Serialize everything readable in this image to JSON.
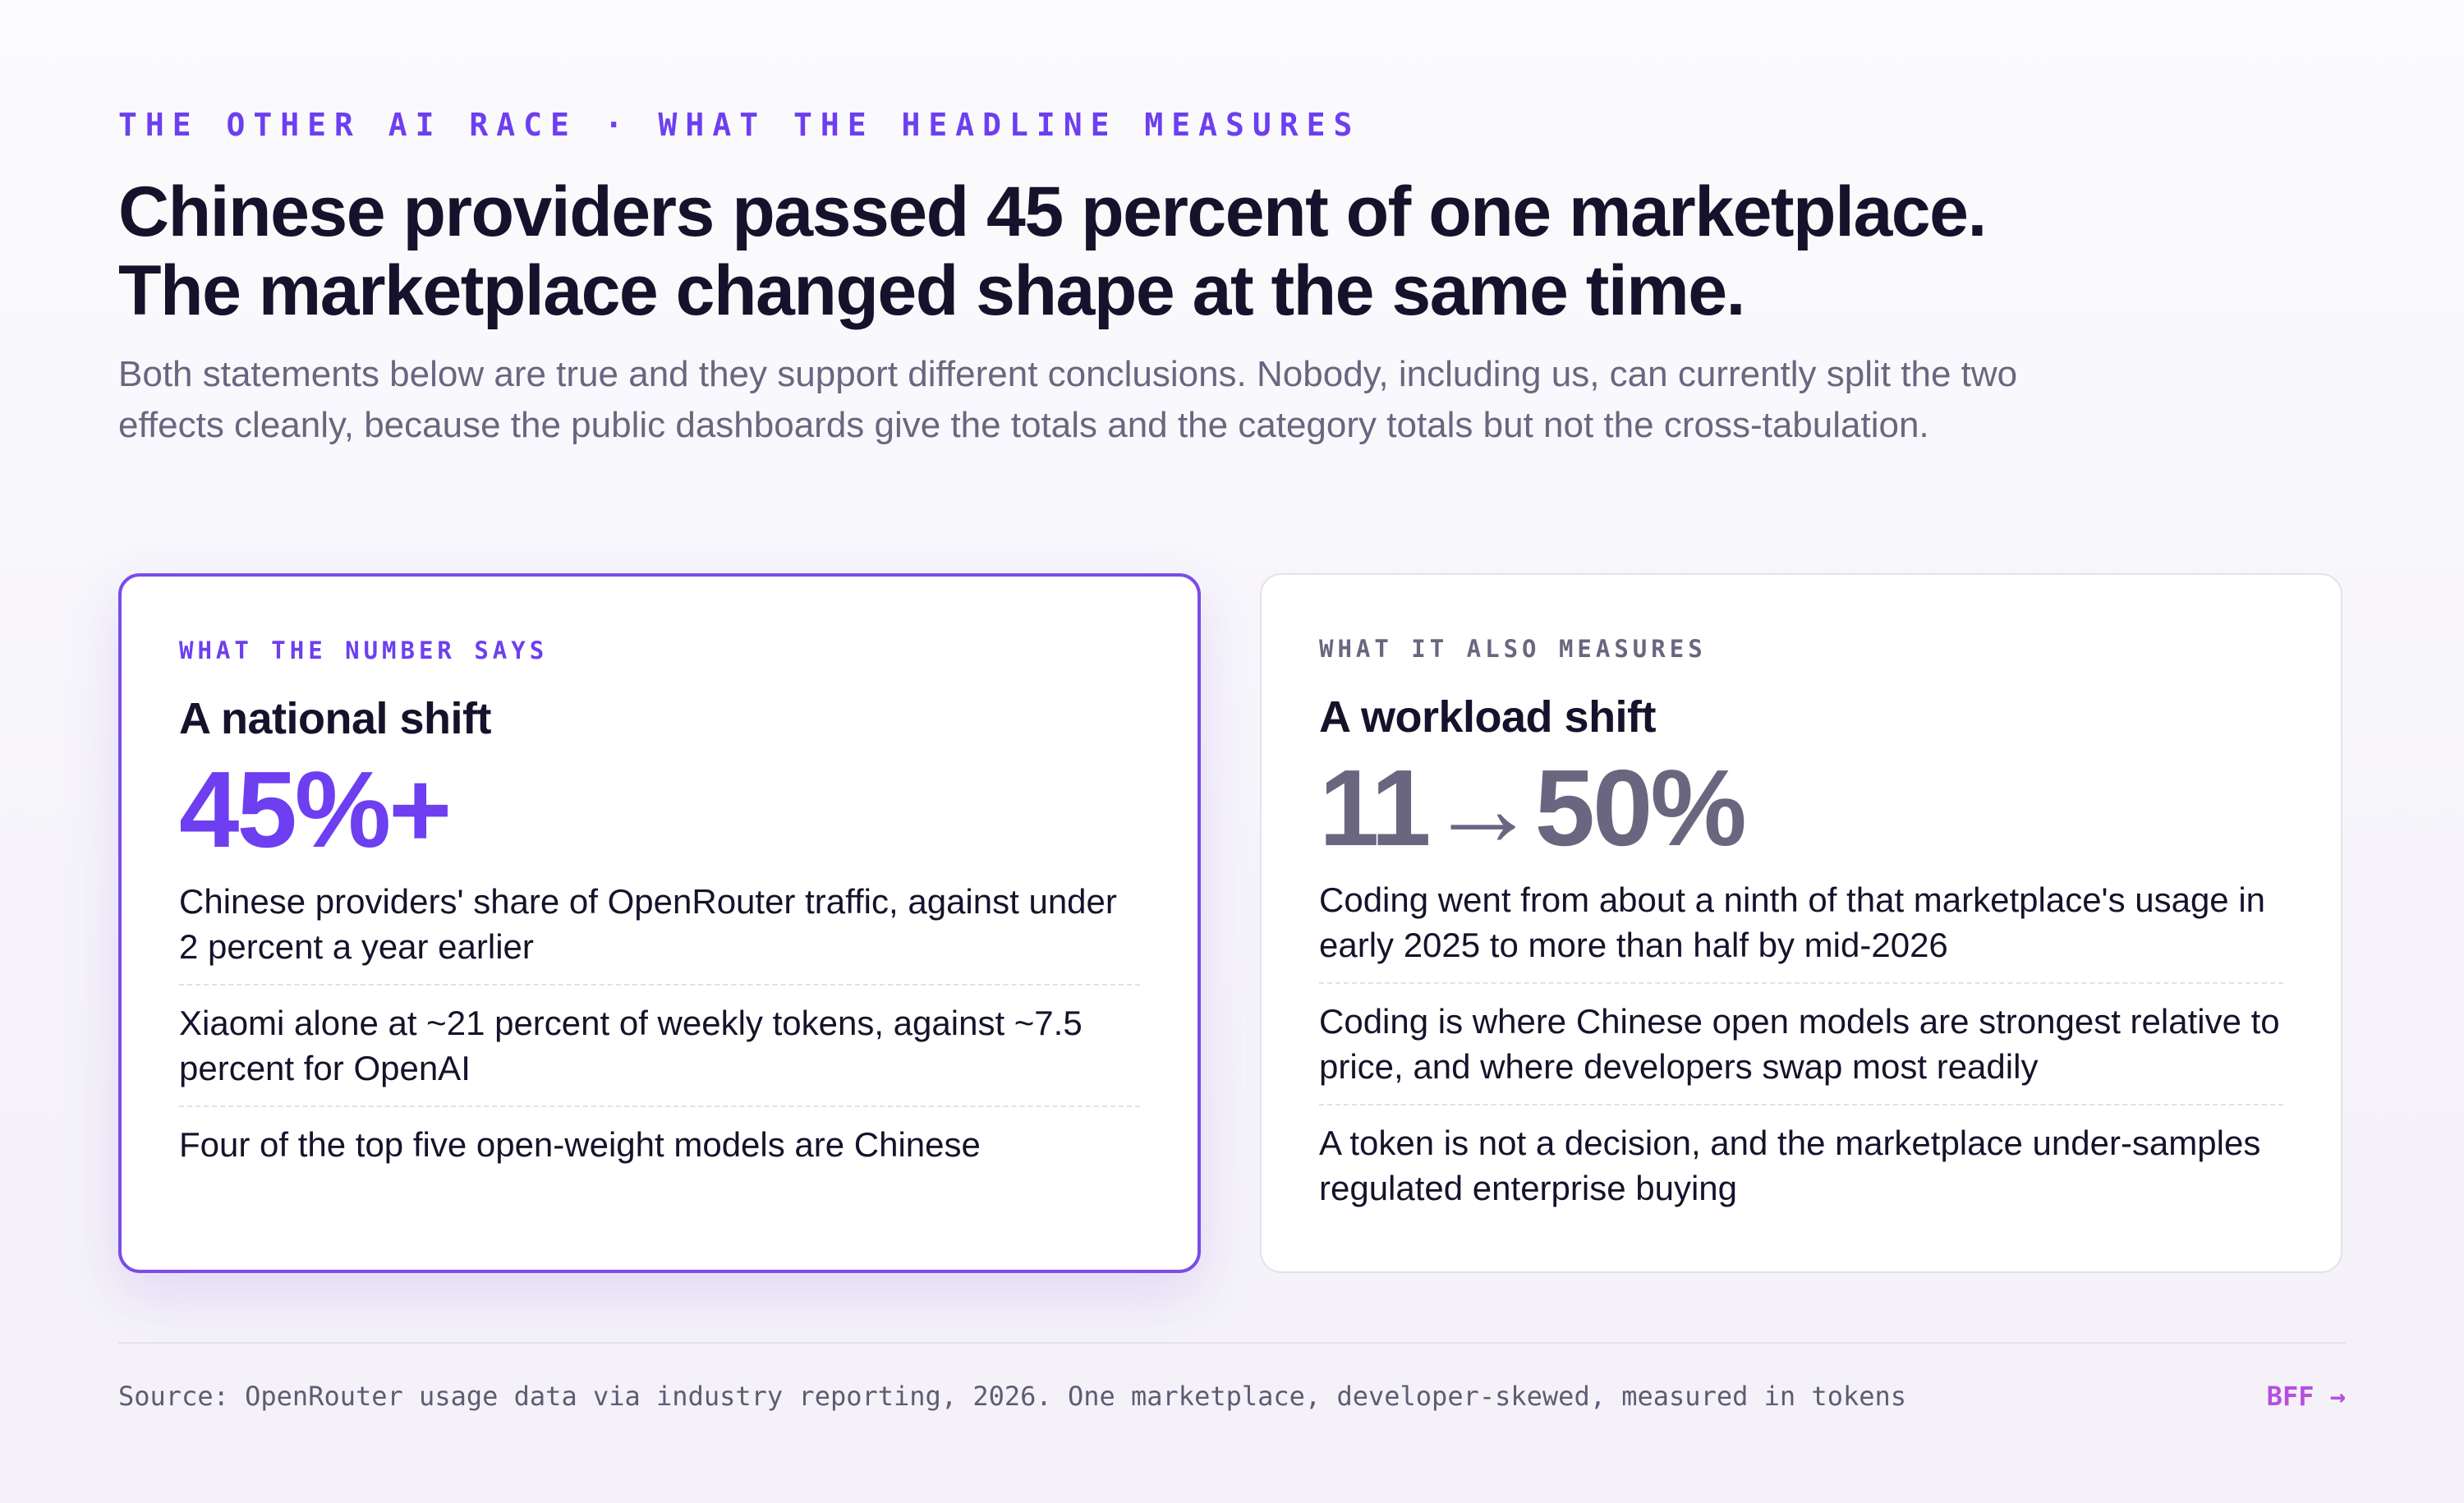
{
  "header": {
    "kicker": "THE OTHER AI RACE · WHAT THE HEADLINE MEASURES",
    "headline_line1": "Chinese providers passed 45 percent of one marketplace.",
    "headline_line2": "The marketplace changed shape at the same time.",
    "subhead": "Both statements below are true and they support different conclusions. Nobody, including us, can currently split the two effects cleanly, because the public dashboards give the totals and the category totals but not the cross-tabulation."
  },
  "cards": [
    {
      "kicker": "WHAT THE NUMBER SAYS",
      "title": "A national shift",
      "stat": "45%+",
      "points": [
        "Chinese providers' share of OpenRouter traffic, against under 2 percent a year earlier",
        "Xiaomi alone at ~21 percent of weekly tokens, against ~7.5 percent for OpenAI",
        "Four of the top five open-weight models are Chinese"
      ]
    },
    {
      "kicker": "WHAT IT ALSO MEASURES",
      "title": "A workload shift",
      "stat": "11→50%",
      "points": [
        "Coding went from about a ninth of that marketplace's usage in early 2025 to more than half by mid-2026",
        "Coding is where Chinese open models are strongest relative to price, and where developers swap most readily",
        "A token is not a decision, and the marketplace under-samples regulated enterprise buying"
      ]
    }
  ],
  "footer": {
    "source": "Source: OpenRouter usage data via industry reporting, 2026. One marketplace, developer-skewed, measured in tokens",
    "brand": "BFF →"
  },
  "colors": {
    "accent": "#6d3ff0",
    "muted": "#6a6680",
    "text": "#15132b",
    "brand": "#b84ee0"
  }
}
